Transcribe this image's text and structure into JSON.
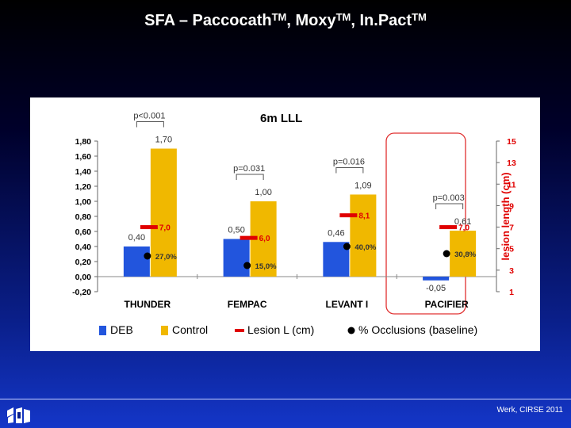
{
  "slide": {
    "title_parts": [
      "SFA – Paccocath",
      "TM",
      ", Moxy",
      "TM",
      ", In.Pact",
      "TM"
    ],
    "credit": "Werk, CIRSE 2011",
    "logo_icon": "institution-logo-icon"
  },
  "chart_data": {
    "type": "bar",
    "title": "6m LLL",
    "categories": [
      "THUNDER",
      "FEMPAC",
      "LEVANT I",
      "PACIFIER"
    ],
    "series": [
      {
        "name": "DEB",
        "values": [
          0.4,
          0.5,
          0.46,
          -0.05
        ],
        "labels": [
          "0,40",
          "0,50",
          "0,46",
          "-0,05"
        ],
        "color": "#2255dd"
      },
      {
        "name": "Control",
        "values": [
          1.7,
          1.0,
          1.09,
          0.61
        ],
        "labels": [
          "1,70",
          "1,00",
          "1,09",
          "0,61"
        ],
        "color": "#f0b800"
      }
    ],
    "lesion_length": {
      "name": "Lesion L (cm)",
      "values": [
        7.0,
        6.0,
        8.1,
        7.0
      ],
      "labels": [
        "7,0",
        "6,0",
        "8,1",
        "7,0"
      ],
      "color": "#e00000"
    },
    "occlusions": {
      "name": "% Occlusions (baseline)",
      "values": [
        27.0,
        15.0,
        40.0,
        30.8
      ],
      "labels": [
        "27,0%",
        "15,0%",
        "40,0%",
        "30,8%"
      ]
    },
    "p_values": [
      "p<0.001",
      "p=0.031",
      "p=0.016",
      "p=0.003"
    ],
    "y_left": {
      "ticks": [
        "1,80",
        "1,60",
        "1,40",
        "1,20",
        "1,00",
        "0,80",
        "0,60",
        "0,40",
        "0,20",
        "0,00",
        "-0,20"
      ],
      "ylim": [
        -0.2,
        1.8
      ]
    },
    "y_right": {
      "label": "lesion length (cm)",
      "ticks": [
        "15",
        "13",
        "11",
        "9",
        "7",
        "5",
        "3",
        "1"
      ],
      "ylim": [
        1,
        15
      ]
    },
    "highlighted_category": "PACIFIER",
    "legend": [
      "DEB",
      "Control",
      "Lesion L (cm)",
      "% Occlusions (baseline)"
    ],
    "legend_position": "bottom"
  }
}
